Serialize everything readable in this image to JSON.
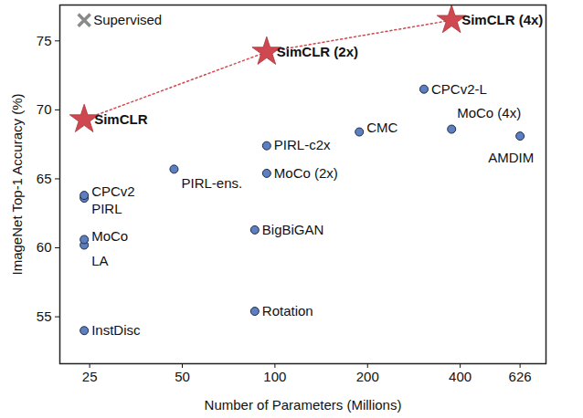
{
  "chart_data": {
    "type": "scatter",
    "x_label": "Number of Parameters (Millions)",
    "y_label": "ImageNet Top-1 Accuracy (%)",
    "log": "x",
    "grid": false,
    "xlim": [
      20,
      760
    ],
    "xticks": [
      25,
      50,
      100,
      200,
      400,
      626
    ],
    "ylim": [
      51.6,
      77.6
    ],
    "yticks": [
      55,
      60,
      65,
      70,
      75
    ],
    "series": [
      {
        "color": "#5b7fc0",
        "marker": "circle",
        "labels": [
          "InstDisc",
          "LA",
          "MoCo",
          "PIRL",
          "CPCv2",
          "Rotation",
          "BigBiGAN",
          "PIRL-ens.",
          "PIRL-c2x",
          "MoCo (2x)",
          "CMC",
          "CPCv2-L",
          "MoCo (4x)",
          "AMDIM"
        ],
        "x": [
          24,
          24,
          24,
          24,
          24,
          86,
          86,
          47,
          94,
          94,
          188,
          305,
          375,
          626
        ],
        "values": [
          54.0,
          60.2,
          60.6,
          63.6,
          63.8,
          55.4,
          61.3,
          65.7,
          67.4,
          65.4,
          68.4,
          71.5,
          68.6,
          68.1
        ]
      },
      {
        "color": "#d0484f",
        "marker": "star",
        "line_style": "dotted",
        "labels": [
          "SimCLR",
          "SimCLR (2x)",
          "SimCLR (4x)"
        ],
        "x": [
          24,
          94,
          375
        ],
        "values": [
          69.3,
          74.2,
          76.5
        ]
      },
      {
        "color": "#8a8a8a",
        "marker": "x",
        "labels": [
          "Supervised"
        ],
        "x": [
          24
        ],
        "values": [
          76.5
        ]
      }
    ]
  }
}
